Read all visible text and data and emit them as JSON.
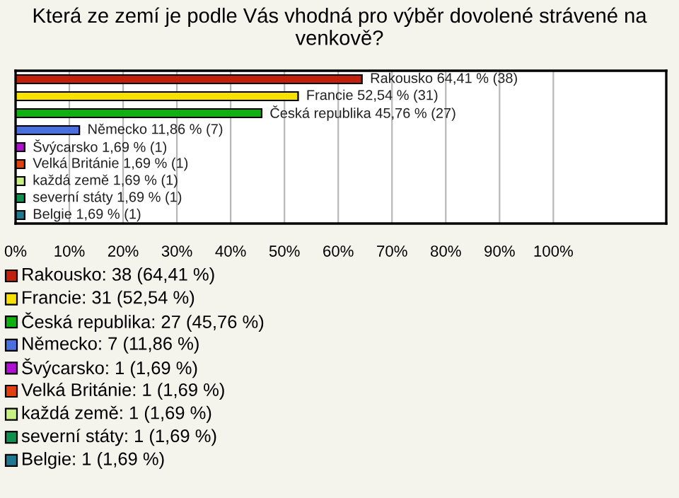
{
  "chart_data": {
    "type": "bar",
    "orientation": "horizontal",
    "title": "Která ze zemí je podle Vás vhodná pro výběr dovolené strávené na venkově?",
    "categories": [
      null,
      null,
      null,
      null,
      null,
      null,
      null,
      null,
      null
    ],
    "values": [
      64.41,
      52.54,
      45.76,
      11.86,
      1.69,
      1.69,
      1.69,
      1.69,
      1.69
    ],
    "colors": [
      "#c0200c",
      "#f8e000",
      "#10b010",
      "#4a70e0",
      "#b010d0",
      "#e04010",
      "#c8f080",
      "#109050",
      "#207890"
    ],
    "value_labels": [
      "Rakousko 64,41 % (38)",
      "Francie 52,54 % (31)",
      "Česká republika 45,76 % (27)",
      "Německo 11,86 % (7)",
      "Švýcarsko 1,69 % (1)",
      "Velká Británie 1,69 % (1)",
      "každá země 1,69 % (1)",
      "severní státy 1,69 % (1)",
      "Belgie 1,69 % (1)"
    ],
    "annotations": [
      "Rakousko: 38 (64,41 %)",
      "Francie: 31 (52,54 %)",
      "Česká republika: 27 (45,76 %)",
      "Německo: 7 (11,86 %)",
      "Švýcarsko: 1 (1,69 %)",
      "Velká Británie: 1 (1,69 %)",
      "každá země: 1 (1,69 %)",
      "severní státy: 1 (1,69 %)",
      "Belgie: 1 (1,69 %)"
    ],
    "xlim": [
      0,
      121
    ],
    "xticks": [
      {
        "value": 0,
        "label": "0%"
      },
      {
        "value": 10,
        "label": "10%"
      },
      {
        "value": 20,
        "label": "20%"
      },
      {
        "value": 30,
        "label": "30%"
      },
      {
        "value": 40,
        "label": "40%"
      },
      {
        "value": 50,
        "label": "50%"
      },
      {
        "value": 60,
        "label": "60%"
      },
      {
        "value": 70,
        "label": "70%"
      },
      {
        "value": 80,
        "label": "80%"
      },
      {
        "value": 90,
        "label": "90%"
      },
      {
        "value": 100,
        "label": "100%"
      }
    ],
    "grid": "x"
  }
}
